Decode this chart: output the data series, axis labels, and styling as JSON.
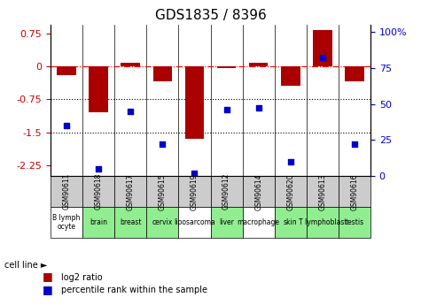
{
  "title": "GDS1835 / 8396",
  "gsm_labels": [
    "GSM90611",
    "GSM90618",
    "GSM90617",
    "GSM90615",
    "GSM90619",
    "GSM90612",
    "GSM90614",
    "GSM90620",
    "GSM90613",
    "GSM90616"
  ],
  "cell_labels": [
    "B lymph\nocyte",
    "brain",
    "breast",
    "cervix",
    "liposarcoma",
    "liver",
    "macrophage",
    "skin",
    "T lymphoblast",
    "testis"
  ],
  "cell_bg": [
    "white",
    "lightgreen",
    "lightgreen",
    "lightgreen",
    "white",
    "lightgreen",
    "white",
    "lightgreen",
    "lightgreen",
    "lightgreen"
  ],
  "log2_ratio": [
    -0.2,
    -1.05,
    0.08,
    -0.35,
    -1.65,
    -0.05,
    0.07,
    -0.45,
    0.82,
    -0.35
  ],
  "percentile": [
    35,
    5,
    45,
    22,
    2,
    46,
    47,
    10,
    82,
    22
  ],
  "ylim_left": [
    -2.5,
    0.95
  ],
  "ylim_right": [
    0,
    105
  ],
  "yticks_left": [
    0.75,
    0,
    -0.75,
    -1.5,
    -2.25
  ],
  "yticks_right": [
    100,
    75,
    50,
    25,
    0
  ],
  "bar_color": "#aa0000",
  "dot_color": "#0000cc",
  "bar_width": 0.6,
  "left_tick_color": "#cc0000",
  "right_tick_color": "#0000cc",
  "gsm_bg": "#cccccc"
}
